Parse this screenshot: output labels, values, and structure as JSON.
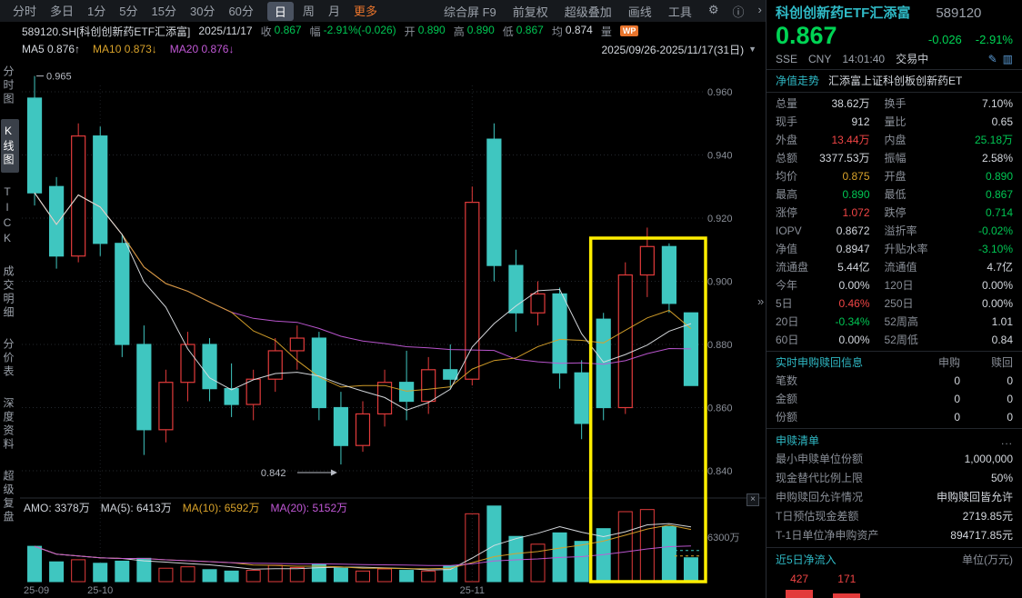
{
  "colors": {
    "up": "#e23b3b",
    "down": "#3fc6c0",
    "neg_text": "#00c653",
    "pos_text": "#f04545",
    "teal_header": "#2fb9c5",
    "yellow": "#d8a22a",
    "purple": "#c158d6",
    "white": "#d3d7dd",
    "quote_green": "#00d454",
    "highlight_box": "#ffee00"
  },
  "topbar": {
    "periods": [
      {
        "label": "分时"
      },
      {
        "label": "多日"
      },
      {
        "label": "1分"
      },
      {
        "label": "5分"
      },
      {
        "label": "15分"
      },
      {
        "label": "30分"
      },
      {
        "label": "60分"
      },
      {
        "label": "日",
        "active": true
      },
      {
        "label": "周"
      },
      {
        "label": "月"
      },
      {
        "label": "更多",
        "accent": true
      }
    ],
    "tools": [
      "综合屏 F9",
      "前复权",
      "超级叠加",
      "画线",
      "工具"
    ],
    "icons": [
      {
        "name": "settings-icon",
        "glyph": "⚙"
      },
      {
        "name": "info-icon",
        "glyph": "ⓘ"
      },
      {
        "name": "expand-icon",
        "glyph": "›"
      }
    ]
  },
  "info_bar": {
    "symbol": "589120.SH[科创创新药ETF汇添富]",
    "date": "2025/11/17",
    "fields": [
      {
        "label": "收",
        "value": "0.867",
        "color": "g"
      },
      {
        "label": "幅",
        "value": "-2.91%(-0.026)",
        "color": "g"
      },
      {
        "label": "开",
        "value": "0.890",
        "color": "g"
      },
      {
        "label": "高",
        "value": "0.890",
        "color": "g"
      },
      {
        "label": "低",
        "value": "0.867",
        "color": "g"
      },
      {
        "label": "均",
        "value": "0.874",
        "color": "w"
      },
      {
        "label": "量",
        "value": "",
        "color": "w"
      }
    ],
    "badge": "WP"
  },
  "ma_bar": {
    "items": [
      {
        "label": "MA5",
        "value": "0.876↑",
        "color": "w"
      },
      {
        "label": "MA10",
        "value": "0.873↓",
        "color": "y"
      },
      {
        "label": "MA20",
        "value": "0.876↓",
        "color": "p"
      }
    ],
    "range": "2025/09/26-2025/11/17(31日)",
    "caret": "▼"
  },
  "sidebar": {
    "items": [
      {
        "label": "分时图"
      },
      {
        "label": "K线图",
        "active": true
      },
      {
        "label": "TICK"
      },
      {
        "label": "成交明细"
      },
      {
        "label": "分价表"
      },
      {
        "label": "深度资料"
      },
      {
        "label": "超级复盘"
      }
    ]
  },
  "chart_data": {
    "type": "candlestick",
    "period": "日K",
    "date_range": "2025/09/26-2025/11/17(31日)",
    "y_ticks": [
      0.96,
      0.94,
      0.92,
      0.9,
      0.88,
      0.86,
      0.84
    ],
    "candles_ohlc": [
      [
        0.958,
        0.965,
        0.924,
        0.928
      ],
      [
        0.93,
        0.933,
        0.904,
        0.908
      ],
      [
        0.908,
        0.95,
        0.906,
        0.946
      ],
      [
        0.946,
        0.949,
        0.908,
        0.912
      ],
      [
        0.912,
        0.915,
        0.876,
        0.88
      ],
      [
        0.88,
        0.886,
        0.845,
        0.853
      ],
      [
        0.853,
        0.872,
        0.849,
        0.868
      ],
      [
        0.868,
        0.884,
        0.862,
        0.88
      ],
      [
        0.88,
        0.882,
        0.862,
        0.866
      ],
      [
        0.866,
        0.874,
        0.857,
        0.861
      ],
      [
        0.861,
        0.872,
        0.856,
        0.869
      ],
      [
        0.869,
        0.882,
        0.865,
        0.878
      ],
      [
        0.878,
        0.886,
        0.872,
        0.882
      ],
      [
        0.882,
        0.884,
        0.856,
        0.86
      ],
      [
        0.86,
        0.865,
        0.842,
        0.848
      ],
      [
        0.848,
        0.862,
        0.846,
        0.858
      ],
      [
        0.858,
        0.872,
        0.854,
        0.868
      ],
      [
        0.868,
        0.878,
        0.856,
        0.862
      ],
      [
        0.862,
        0.876,
        0.858,
        0.872
      ],
      [
        0.872,
        0.88,
        0.866,
        0.869
      ],
      [
        0.869,
        0.93,
        0.867,
        0.925
      ],
      [
        0.945,
        0.95,
        0.9,
        0.905
      ],
      [
        0.905,
        0.91,
        0.884,
        0.89
      ],
      [
        0.89,
        0.9,
        0.886,
        0.896
      ],
      [
        0.896,
        0.898,
        0.866,
        0.871
      ],
      [
        0.871,
        0.875,
        0.85,
        0.855
      ],
      [
        0.888,
        0.89,
        0.856,
        0.86
      ],
      [
        0.86,
        0.906,
        0.858,
        0.902
      ],
      [
        0.902,
        0.917,
        0.895,
        0.911
      ],
      [
        0.911,
        0.912,
        0.89,
        0.893
      ],
      [
        0.89,
        0.89,
        0.867,
        0.867
      ]
    ],
    "volumes_wan": [
      5000,
      2800,
      3100,
      2600,
      2900,
      3300,
      1900,
      2100,
      1700,
      1500,
      1600,
      2300,
      2000,
      2500,
      1900,
      1500,
      1800,
      1600,
      1500,
      2200,
      9600,
      10700,
      6400,
      5300,
      6900,
      5700,
      7500,
      9900,
      10200,
      7800,
      3378
    ],
    "month_labels": [
      {
        "label": "25-09",
        "index": 0
      },
      {
        "label": "25-10",
        "index": 3
      },
      {
        "label": "25-11",
        "index": 20
      }
    ],
    "vol_axis": {
      "label": "6300万",
      "value": 6300
    },
    "projection_dash_wan": 4400,
    "annotations": {
      "high": {
        "text": "0.965",
        "price": 0.965,
        "index": 0
      },
      "low": {
        "text": "0.842",
        "price": 0.842,
        "index": 14
      },
      "highlight_last_n": 5
    },
    "amo_line": [
      {
        "text": "AMO: 3378万",
        "color": "#cfd3da"
      },
      {
        "text": "MA(5): 6413万",
        "color": "#cfd3da"
      },
      {
        "text": "MA(10): 6592万",
        "color": "#d8a22a"
      },
      {
        "text": "MA(20): 5152万",
        "color": "#c158d6"
      }
    ]
  },
  "panel": {
    "name": "科创创新药ETF汇添富",
    "code": "589120",
    "price": "0.867",
    "change": "-0.026",
    "change_pct": "-2.91%",
    "exchange": "SSE",
    "currency": "CNY",
    "time": "14:01:40",
    "status": "交易中",
    "nav_link": "净值走势",
    "fund_name": "汇添富上证科创板创新药ET",
    "collapse_arrow": "»",
    "stats": [
      [
        "总量",
        "38.62万",
        "w",
        "换手",
        "7.10%",
        "w"
      ],
      [
        "现手",
        "912",
        "w",
        "量比",
        "0.65",
        "w"
      ],
      [
        "外盘",
        "13.44万",
        "r",
        "内盘",
        "25.18万",
        "g"
      ],
      [
        "总额",
        "3377.53万",
        "w",
        "振幅",
        "2.58%",
        "w"
      ],
      [
        "均价",
        "0.875",
        "y",
        "开盘",
        "0.890",
        "g"
      ],
      [
        "最高",
        "0.890",
        "g",
        "最低",
        "0.867",
        "g"
      ],
      [
        "涨停",
        "1.072",
        "r",
        "跌停",
        "0.714",
        "g"
      ],
      [
        "IOPV",
        "0.8672",
        "w",
        "溢折率",
        "-0.02%",
        "g"
      ],
      [
        "净值",
        "0.8947",
        "w",
        "升贴水率",
        "-3.10%",
        "g"
      ],
      [
        "流通盘",
        "5.44亿",
        "w",
        "流通值",
        "4.7亿",
        "w"
      ],
      [
        "今年",
        "0.00%",
        "w",
        "120日",
        "0.00%",
        "w"
      ],
      [
        "5日",
        "0.46%",
        "r",
        "250日",
        "0.00%",
        "w"
      ],
      [
        "20日",
        "-0.34%",
        "g",
        "52周高",
        "1.01",
        "w"
      ],
      [
        "60日",
        "0.00%",
        "w",
        "52周低",
        "0.84",
        "w"
      ]
    ],
    "subscribe": {
      "title": "实时申购赎回信息",
      "col1": "申购",
      "col2": "赎回",
      "rows": [
        [
          "笔数",
          "0",
          "0"
        ],
        [
          "金额",
          "0",
          "0"
        ],
        [
          "份额",
          "0",
          "0"
        ]
      ]
    },
    "list": {
      "title": "申赎清单",
      "more": "...",
      "rows": [
        [
          "最小申赎单位份额",
          "1,000,000"
        ],
        [
          "现金替代比例上限",
          "50%"
        ],
        [
          "申购赎回允许情况",
          "申购赎回皆允许"
        ],
        [
          "T日预估现金差额",
          "2719.85元"
        ],
        [
          "T-1日单位净申购资产",
          "894717.85元"
        ]
      ]
    },
    "flow": {
      "title": "近5日净流入",
      "unit": "单位(万元)",
      "bars": [
        {
          "label": "427",
          "h": 9,
          "dir": "up"
        },
        {
          "label": "171",
          "h": 5,
          "dir": "up"
        },
        {
          "label": "",
          "h": 14,
          "dir": "down"
        },
        {
          "label": "",
          "h": 18,
          "dir": "down"
        },
        {
          "label": "",
          "h": 12,
          "dir": "down"
        }
      ]
    }
  }
}
